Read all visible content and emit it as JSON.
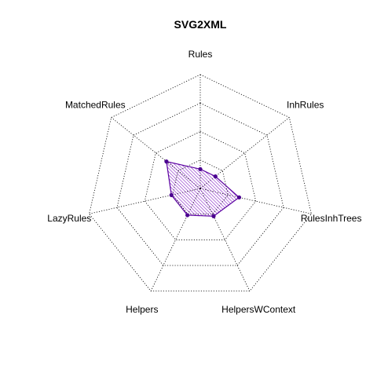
{
  "chart_data": {
    "type": "radar",
    "title": "SVG2XML",
    "axes": [
      "Rules",
      "InhRules",
      "RulesInhTrees",
      "HelpersWContext",
      "Helpers",
      "LazyRules",
      "MatchedRules"
    ],
    "range": [
      0,
      1
    ],
    "grid_levels": 4,
    "series": [
      {
        "values": [
          0.17,
          0.17,
          0.35,
          0.27,
          0.26,
          0.26,
          0.38
        ]
      }
    ],
    "colors": {
      "series_line": "#5a00a0",
      "series_fill_hatch": "#7a10c0",
      "series_point": "#4b0090",
      "grid": "#000000"
    }
  }
}
